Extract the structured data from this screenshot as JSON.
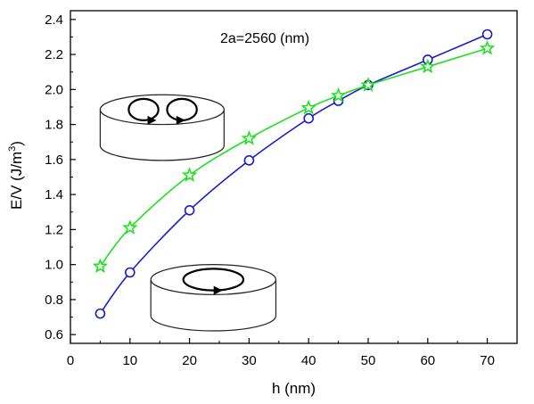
{
  "chart_data": {
    "type": "line",
    "annotation": "2a=2560 (nm)",
    "xlabel": "h (nm)",
    "ylabel_main": "E/V (J/m",
    "ylabel_sup": "3",
    "ylabel_close": ")",
    "xlim": [
      0,
      75
    ],
    "ylim": [
      0.55,
      2.45
    ],
    "xticks": [
      "0",
      "10",
      "20",
      "30",
      "40",
      "50",
      "60",
      "70"
    ],
    "yticks": [
      "0.6",
      "0.8",
      "1.0",
      "1.2",
      "1.4",
      "1.6",
      "1.8",
      "2.0",
      "2.2",
      "2.4"
    ],
    "grid": false,
    "series": [
      {
        "marker": "circle",
        "color": "#1a1acc",
        "x": [
          5,
          10,
          20,
          30,
          40,
          45,
          50,
          60,
          70
        ],
        "y": [
          0.72,
          0.955,
          1.31,
          1.595,
          1.835,
          1.935,
          2.025,
          2.17,
          2.315
        ]
      },
      {
        "marker": "star",
        "color": "#22e022",
        "x": [
          5,
          10,
          20,
          30,
          40,
          45,
          50,
          60,
          70
        ],
        "y": [
          0.99,
          1.21,
          1.51,
          1.72,
          1.895,
          1.965,
          2.025,
          2.13,
          2.235
        ]
      }
    ],
    "insets": [
      {
        "name": "vortex-pair-disk-icon",
        "x": 5,
        "y": 1.97,
        "w": 20.8
      },
      {
        "name": "single-vortex-disk-icon",
        "x": 13.5,
        "y": 1.0,
        "w": 21
      }
    ]
  }
}
